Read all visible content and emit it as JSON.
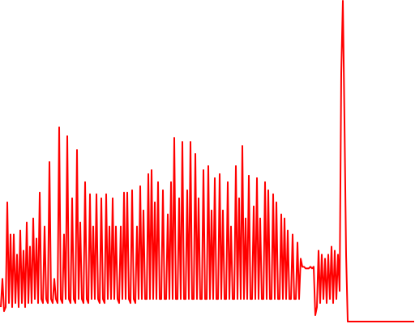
{
  "chart_data": {
    "type": "line",
    "color": "#ff0000",
    "ylim": [
      0,
      400
    ],
    "values": [
      20,
      55,
      15,
      20,
      150,
      25,
      110,
      20,
      110,
      25,
      85,
      20,
      115,
      25,
      90,
      20,
      125,
      25,
      95,
      25,
      130,
      30,
      105,
      25,
      162,
      30,
      25,
      120,
      30,
      25,
      200,
      30,
      25,
      55,
      30,
      25,
      243,
      30,
      25,
      110,
      30,
      232,
      30,
      25,
      155,
      30,
      25,
      215,
      30,
      125,
      30,
      25,
      175,
      30,
      25,
      160,
      30,
      120,
      30,
      160,
      30,
      25,
      155,
      30,
      25,
      160,
      30,
      120,
      30,
      155,
      30,
      120,
      30,
      25,
      120,
      30,
      162,
      30,
      162,
      30,
      25,
      165,
      30,
      25,
      120,
      30,
      170,
      30,
      140,
      30,
      30,
      185,
      30,
      190,
      30,
      150,
      30,
      175,
      30,
      30,
      165,
      30,
      30,
      135,
      30,
      175,
      30,
      230,
      30,
      30,
      155,
      30,
      225,
      30,
      30,
      165,
      30,
      225,
      30,
      30,
      210,
      30,
      155,
      30,
      30,
      190,
      30,
      30,
      195,
      30,
      140,
      30,
      180,
      30,
      30,
      185,
      30,
      140,
      30,
      30,
      175,
      30,
      120,
      30,
      30,
      195,
      30,
      155,
      30,
      220,
      30,
      130,
      30,
      183,
      30,
      30,
      145,
      30,
      180,
      30,
      130,
      30,
      30,
      175,
      30,
      165,
      30,
      30,
      160,
      30,
      150,
      30,
      30,
      135,
      30,
      130,
      30,
      115,
      30,
      30,
      110,
      30,
      30,
      100,
      30,
      80,
      70,
      70,
      68,
      68,
      68,
      70,
      68,
      70,
      10,
      20,
      90,
      25,
      85,
      30,
      80,
      25,
      85,
      30,
      95,
      25,
      90,
      30,
      85,
      40,
      310,
      400,
      250,
      85,
      2,
      2,
      2,
      2,
      2,
      2,
      2,
      2,
      2,
      2,
      2,
      2,
      2,
      2,
      2,
      2,
      2,
      2,
      2,
      2,
      2,
      2,
      2,
      2,
      2,
      2,
      2,
      2,
      2,
      2,
      2,
      2,
      2,
      2,
      2,
      2,
      2,
      2,
      2,
      2,
      2,
      2
    ]
  }
}
